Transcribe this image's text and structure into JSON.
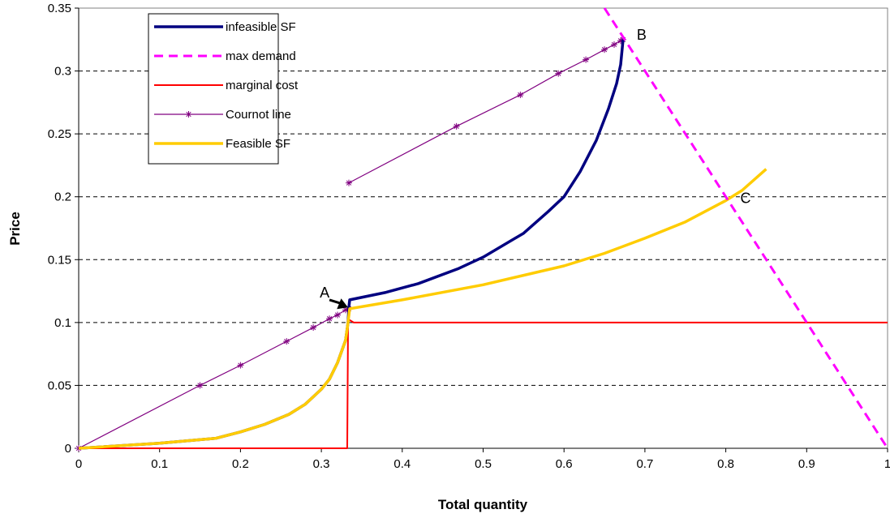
{
  "chart_data": {
    "type": "line",
    "title": "",
    "xlabel": "Total quantity",
    "ylabel": "Price",
    "xlim": [
      0,
      1
    ],
    "ylim": [
      0,
      0.35
    ],
    "x_ticks": [
      "0",
      "0.1",
      "0.2",
      "0.3",
      "0.4",
      "0.5",
      "0.6",
      "0.7",
      "0.8",
      "0.9",
      "1"
    ],
    "y_ticks": [
      "0",
      "0.05",
      "0.1",
      "0.15",
      "0.2",
      "0.25",
      "0.3",
      "0.35"
    ],
    "grid": "horizontal-dashed",
    "legend_placement": "top-left",
    "series": [
      {
        "name": "infeasible SF",
        "color": "#000080",
        "style": "solid",
        "points": [
          [
            0,
            0
          ],
          [
            0.1,
            0.004
          ],
          [
            0.17,
            0.008
          ],
          [
            0.2,
            0.013
          ],
          [
            0.23,
            0.019
          ],
          [
            0.26,
            0.027
          ],
          [
            0.28,
            0.035
          ],
          [
            0.3,
            0.047
          ],
          [
            0.31,
            0.055
          ],
          [
            0.32,
            0.068
          ],
          [
            0.33,
            0.086
          ],
          [
            0.333,
            0.1
          ],
          [
            0.334,
            0.112
          ],
          [
            0.335,
            0.118
          ],
          [
            0.38,
            0.124
          ],
          [
            0.42,
            0.131
          ],
          [
            0.47,
            0.143
          ],
          [
            0.5,
            0.152
          ],
          [
            0.55,
            0.171
          ],
          [
            0.58,
            0.188
          ],
          [
            0.6,
            0.2
          ],
          [
            0.62,
            0.22
          ],
          [
            0.64,
            0.245
          ],
          [
            0.655,
            0.27
          ],
          [
            0.665,
            0.29
          ],
          [
            0.67,
            0.305
          ],
          [
            0.673,
            0.325
          ]
        ]
      },
      {
        "name": "max demand",
        "color": "#ff00ff",
        "style": "dashed",
        "points": [
          [
            0.65,
            0.35
          ],
          [
            1.0,
            0.0
          ]
        ]
      },
      {
        "name": "marginal cost",
        "color": "#ff0000",
        "style": "solid",
        "points": [
          [
            0,
            0
          ],
          [
            0.33,
            0
          ],
          [
            0.332,
            0.0
          ],
          [
            0.333,
            0.1
          ],
          [
            0.335,
            0.102
          ],
          [
            0.34,
            0.1
          ],
          [
            1.0,
            0.1
          ]
        ]
      },
      {
        "name": "Cournot line",
        "color": "#800080",
        "style": "solid-markers",
        "points": [
          [
            0,
            0
          ],
          [
            0.15,
            0.05
          ],
          [
            0.2,
            0.066
          ],
          [
            0.257,
            0.085
          ],
          [
            0.29,
            0.096
          ],
          [
            0.31,
            0.103
          ],
          [
            0.32,
            0.106
          ],
          [
            0.33,
            0.11
          ],
          [
            0.334,
            0.111
          ]
        ],
        "points_upper": [
          [
            0.334,
            0.211
          ],
          [
            0.467,
            0.256
          ],
          [
            0.546,
            0.281
          ],
          [
            0.593,
            0.298
          ],
          [
            0.627,
            0.309
          ],
          [
            0.65,
            0.317
          ],
          [
            0.662,
            0.321
          ],
          [
            0.67,
            0.324
          ],
          [
            0.673,
            0.325
          ]
        ]
      },
      {
        "name": "Feasible SF",
        "color": "#ffcc00",
        "style": "solid",
        "points": [
          [
            0,
            0
          ],
          [
            0.1,
            0.004
          ],
          [
            0.17,
            0.008
          ],
          [
            0.2,
            0.013
          ],
          [
            0.23,
            0.019
          ],
          [
            0.26,
            0.027
          ],
          [
            0.28,
            0.035
          ],
          [
            0.3,
            0.047
          ],
          [
            0.31,
            0.055
          ],
          [
            0.32,
            0.068
          ],
          [
            0.33,
            0.086
          ],
          [
            0.333,
            0.1
          ],
          [
            0.335,
            0.111
          ],
          [
            0.4,
            0.118
          ],
          [
            0.5,
            0.13
          ],
          [
            0.6,
            0.145
          ],
          [
            0.65,
            0.155
          ],
          [
            0.7,
            0.167
          ],
          [
            0.75,
            0.18
          ],
          [
            0.8,
            0.197
          ],
          [
            0.82,
            0.205
          ],
          [
            0.85,
            0.222
          ]
        ]
      }
    ],
    "annotations": [
      {
        "text": "A",
        "x": 0.298,
        "y": 0.12
      },
      {
        "text": "B",
        "x": 0.69,
        "y": 0.325
      },
      {
        "text": "C",
        "x": 0.818,
        "y": 0.195
      }
    ],
    "arrow": {
      "from": [
        0.31,
        0.118
      ],
      "to": [
        0.333,
        0.112
      ]
    }
  }
}
